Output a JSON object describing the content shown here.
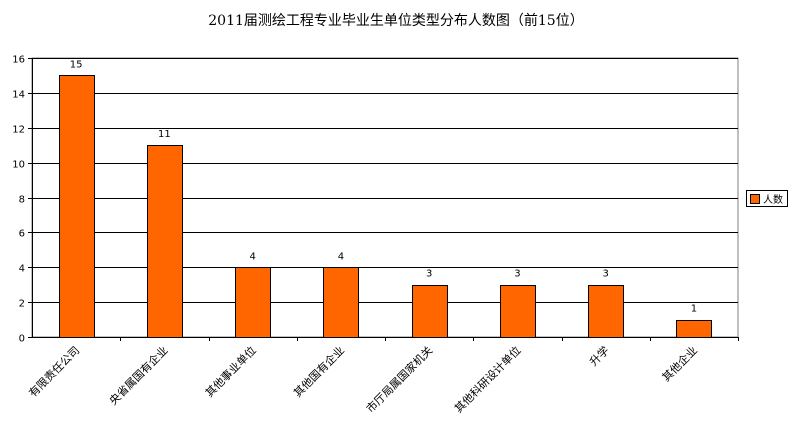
{
  "chart_data": {
    "type": "bar",
    "title": "2011届测绘工程专业毕业生单位类型分布人数图（前15位）",
    "categories": [
      "有限责任公司",
      "央省属国有企业",
      "其他事业单位",
      "其他国有企业",
      "市厅局属国家机关",
      "其他科研设计单位",
      "升学",
      "其他企业"
    ],
    "series": [
      {
        "name": "人数",
        "values": [
          15,
          11,
          4,
          4,
          3,
          3,
          3,
          1
        ]
      }
    ],
    "ylim": [
      0,
      16
    ],
    "yticks": [
      0,
      2,
      4,
      6,
      8,
      10,
      12,
      14,
      16
    ],
    "grid": true,
    "legend_position": "right",
    "colors": {
      "bar": "#ff6600",
      "bar_stroke": "#000000",
      "grid": "#000000"
    }
  }
}
